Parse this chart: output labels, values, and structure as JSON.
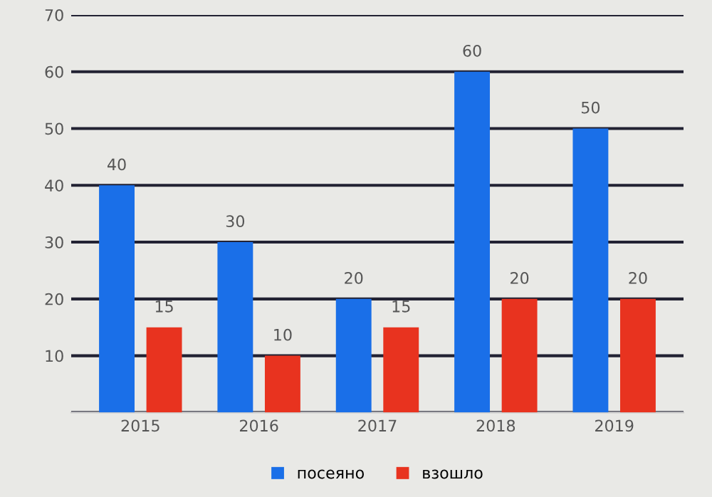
{
  "chart_data": {
    "type": "bar",
    "categories": [
      "2015",
      "2016",
      "2017",
      "2018",
      "2019"
    ],
    "series": [
      {
        "name": "посеяно",
        "color": "#1a6fe8",
        "values": [
          40,
          30,
          20,
          60,
          50
        ]
      },
      {
        "name": "взошло",
        "color": "#e8331f",
        "values": [
          15,
          10,
          15,
          20,
          20
        ]
      }
    ],
    "ylim": [
      0,
      70
    ],
    "yticks": [
      {
        "value": 0,
        "label": null
      },
      10,
      20,
      30,
      40,
      50,
      60,
      70
    ],
    "grid": "y",
    "legend": "bottom",
    "data_labels": true
  }
}
